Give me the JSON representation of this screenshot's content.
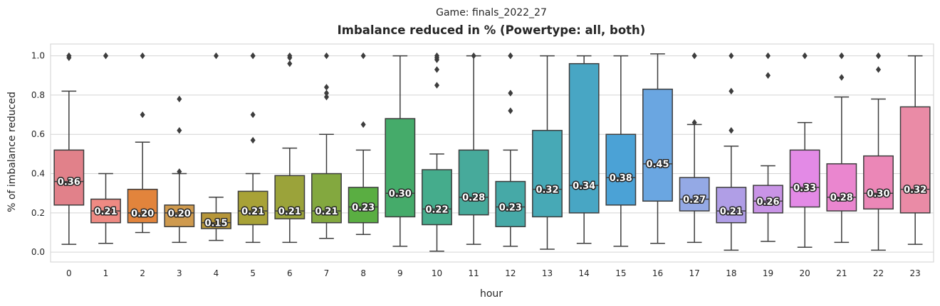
{
  "chart_data": {
    "type": "box",
    "suptitle": "Game: finals_2022_27",
    "title": "Imbalance reduced in % (Powertype: all, both)",
    "xlabel": "hour",
    "ylabel": "% of imbalance reduced",
    "categories": [
      "0",
      "1",
      "2",
      "3",
      "4",
      "5",
      "6",
      "7",
      "8",
      "9",
      "10",
      "11",
      "12",
      "13",
      "14",
      "15",
      "16",
      "17",
      "18",
      "19",
      "20",
      "21",
      "22",
      "23"
    ],
    "ylim": [
      -0.05,
      1.06
    ],
    "yticks": [
      "0.0",
      "0.2",
      "0.4",
      "0.6",
      "0.8",
      "1.0"
    ],
    "grid": true,
    "colors": [
      "#e1818a",
      "#ee8a83",
      "#e2843c",
      "#cf9a4e",
      "#b69639",
      "#a8a237",
      "#9ba33a",
      "#83a83f",
      "#5aae42",
      "#45ab6a",
      "#45ac8c",
      "#47aa9b",
      "#46a9a7",
      "#47a9b6",
      "#48a6c4",
      "#4ba2d6",
      "#6aa6e1",
      "#94a9e5",
      "#b09ee6",
      "#c994e6",
      "#e38ae6",
      "#ea86cf",
      "#eb87b7",
      "#ea8ba6"
    ],
    "boxes": [
      {
        "hour": "0",
        "q1": 0.24,
        "median": 0.36,
        "q3": 0.52,
        "whisker_low": 0.04,
        "whisker_high": 0.82,
        "outliers": [
          0.99,
          1.0,
          1.0
        ],
        "median_label": "0.36"
      },
      {
        "hour": "1",
        "q1": 0.15,
        "median": 0.21,
        "q3": 0.27,
        "whisker_low": 0.045,
        "whisker_high": 0.4,
        "outliers": [
          1.0,
          1.0
        ],
        "median_label": "0.21"
      },
      {
        "hour": "2",
        "q1": 0.15,
        "median": 0.2,
        "q3": 0.32,
        "whisker_low": 0.1,
        "whisker_high": 0.56,
        "outliers": [
          0.7,
          1.0
        ],
        "median_label": "0.20"
      },
      {
        "hour": "3",
        "q1": 0.13,
        "median": 0.2,
        "q3": 0.24,
        "whisker_low": 0.05,
        "whisker_high": 0.4,
        "outliers": [
          0.41,
          0.62,
          0.78
        ],
        "median_label": "0.20"
      },
      {
        "hour": "4",
        "q1": 0.12,
        "median": 0.15,
        "q3": 0.2,
        "whisker_low": 0.06,
        "whisker_high": 0.28,
        "outliers": [
          1.0
        ],
        "median_label": "0.15"
      },
      {
        "hour": "5",
        "q1": 0.14,
        "median": 0.21,
        "q3": 0.31,
        "whisker_low": 0.05,
        "whisker_high": 0.4,
        "outliers": [
          0.57,
          0.7,
          1.0,
          1.0
        ],
        "median_label": "0.21"
      },
      {
        "hour": "6",
        "q1": 0.17,
        "median": 0.21,
        "q3": 0.39,
        "whisker_low": 0.05,
        "whisker_high": 0.53,
        "outliers": [
          0.96,
          0.99,
          1.0
        ],
        "median_label": "0.21"
      },
      {
        "hour": "7",
        "q1": 0.15,
        "median": 0.21,
        "q3": 0.4,
        "whisker_low": 0.07,
        "whisker_high": 0.6,
        "outliers": [
          0.79,
          0.81,
          0.84,
          1.0
        ],
        "median_label": "0.21"
      },
      {
        "hour": "8",
        "q1": 0.15,
        "median": 0.23,
        "q3": 0.33,
        "whisker_low": 0.09,
        "whisker_high": 0.52,
        "outliers": [
          0.65,
          1.0
        ],
        "median_label": "0.23"
      },
      {
        "hour": "9",
        "q1": 0.18,
        "median": 0.3,
        "q3": 0.68,
        "whisker_low": 0.03,
        "whisker_high": 1.0,
        "outliers": [],
        "median_label": "0.30"
      },
      {
        "hour": "10",
        "q1": 0.14,
        "median": 0.22,
        "q3": 0.42,
        "whisker_low": 0.005,
        "whisker_high": 0.5,
        "outliers": [
          0.85,
          0.93,
          0.98,
          0.99,
          1.0
        ],
        "median_label": "0.22"
      },
      {
        "hour": "11",
        "q1": 0.19,
        "median": 0.28,
        "q3": 0.52,
        "whisker_low": 0.04,
        "whisker_high": 1.0,
        "outliers": [
          1.0
        ],
        "median_label": "0.28"
      },
      {
        "hour": "12",
        "q1": 0.13,
        "median": 0.23,
        "q3": 0.36,
        "whisker_low": 0.03,
        "whisker_high": 0.52,
        "outliers": [
          0.72,
          0.81,
          1.0,
          1.0
        ],
        "median_label": "0.23"
      },
      {
        "hour": "13",
        "q1": 0.18,
        "median": 0.32,
        "q3": 0.62,
        "whisker_low": 0.015,
        "whisker_high": 1.0,
        "outliers": [],
        "median_label": "0.32"
      },
      {
        "hour": "14",
        "q1": 0.2,
        "median": 0.34,
        "q3": 0.96,
        "whisker_low": 0.045,
        "whisker_high": 1.0,
        "outliers": [],
        "median_label": "0.34"
      },
      {
        "hour": "15",
        "q1": 0.24,
        "median": 0.38,
        "q3": 0.6,
        "whisker_low": 0.03,
        "whisker_high": 1.0,
        "outliers": [],
        "median_label": "0.38"
      },
      {
        "hour": "16",
        "q1": 0.26,
        "median": 0.45,
        "q3": 0.83,
        "whisker_low": 0.045,
        "whisker_high": 1.01,
        "outliers": [],
        "median_label": "0.45"
      },
      {
        "hour": "17",
        "q1": 0.21,
        "median": 0.27,
        "q3": 0.38,
        "whisker_low": 0.05,
        "whisker_high": 0.65,
        "outliers": [
          0.66,
          1.0,
          1.0
        ],
        "median_label": "0.27"
      },
      {
        "hour": "18",
        "q1": 0.15,
        "median": 0.21,
        "q3": 0.33,
        "whisker_low": 0.01,
        "whisker_high": 0.54,
        "outliers": [
          0.62,
          0.82,
          1.0
        ],
        "median_label": "0.21"
      },
      {
        "hour": "19",
        "q1": 0.2,
        "median": 0.26,
        "q3": 0.34,
        "whisker_low": 0.055,
        "whisker_high": 0.44,
        "outliers": [
          0.9,
          1.0
        ],
        "median_label": "0.26"
      },
      {
        "hour": "20",
        "q1": 0.23,
        "median": 0.33,
        "q3": 0.52,
        "whisker_low": 0.025,
        "whisker_high": 0.66,
        "outliers": [
          1.0,
          1.0
        ],
        "median_label": "0.33"
      },
      {
        "hour": "21",
        "q1": 0.21,
        "median": 0.28,
        "q3": 0.45,
        "whisker_low": 0.05,
        "whisker_high": 0.79,
        "outliers": [
          0.89,
          1.0,
          1.0
        ],
        "median_label": "0.28"
      },
      {
        "hour": "22",
        "q1": 0.22,
        "median": 0.3,
        "q3": 0.49,
        "whisker_low": 0.01,
        "whisker_high": 0.78,
        "outliers": [
          0.93,
          1.0,
          1.0
        ],
        "median_label": "0.30"
      },
      {
        "hour": "23",
        "q1": 0.2,
        "median": 0.32,
        "q3": 0.74,
        "whisker_low": 0.04,
        "whisker_high": 1.0,
        "outliers": [],
        "median_label": "0.32"
      }
    ]
  }
}
